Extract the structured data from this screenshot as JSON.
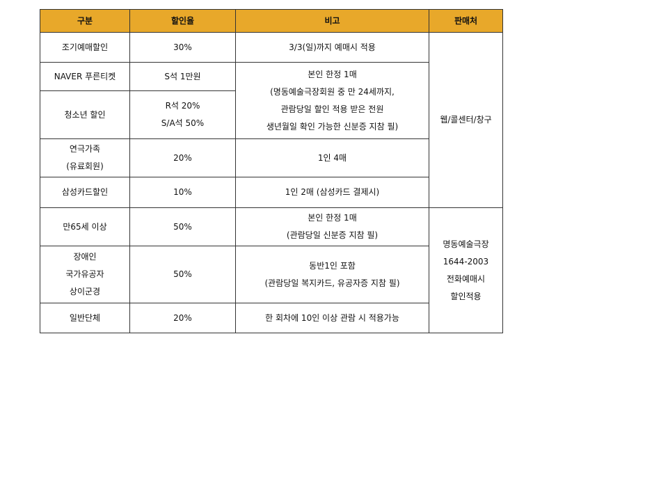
{
  "colors": {
    "header_bg": "#E8A82A",
    "border": "#333333"
  },
  "table": {
    "headers": [
      "구분",
      "할인율",
      "비고",
      "판매처"
    ],
    "rows": [
      {
        "category": "조기예매할인",
        "rate": "30%",
        "note": "3/3(일)까지 예매시 적용"
      },
      {
        "category": "NAVER 푸른티켓",
        "rate": "S석 1만원",
        "note": "본인 한정 1매\n(명동예술극장회원 중 만 24세까지,\n관람당일 할인 적용 받은 전원\n생년월일 확인 가능한  신분증 지참 필)"
      },
      {
        "category": "청소년 할인",
        "rate": "R석 20%\nS/A석 50%"
      },
      {
        "category": "연극가족\n(유료회원)",
        "rate": "20%",
        "note": "1인 4매"
      },
      {
        "category": "삼성카드할인",
        "rate": "10%",
        "note": "1인 2매 (삼성카드 결제시)"
      },
      {
        "category": "만65세 이상",
        "rate": "50%",
        "note": "본인 한정 1매\n(관람당일 신분증 지참 필)"
      },
      {
        "category": "장애인\n국가유공자\n상이군경",
        "rate": "50%",
        "note": "동반1인 포함\n(관람당일 복지카드, 유공자증 지참 필)"
      },
      {
        "category": "일반단체",
        "rate": "20%",
        "note": "한 회차에 10인 이상 관람 시 적용가능"
      }
    ],
    "vendors": [
      "웹/콜센터/창구",
      "명동예술극장\n1644-2003\n전화예매시\n할인적용"
    ]
  }
}
